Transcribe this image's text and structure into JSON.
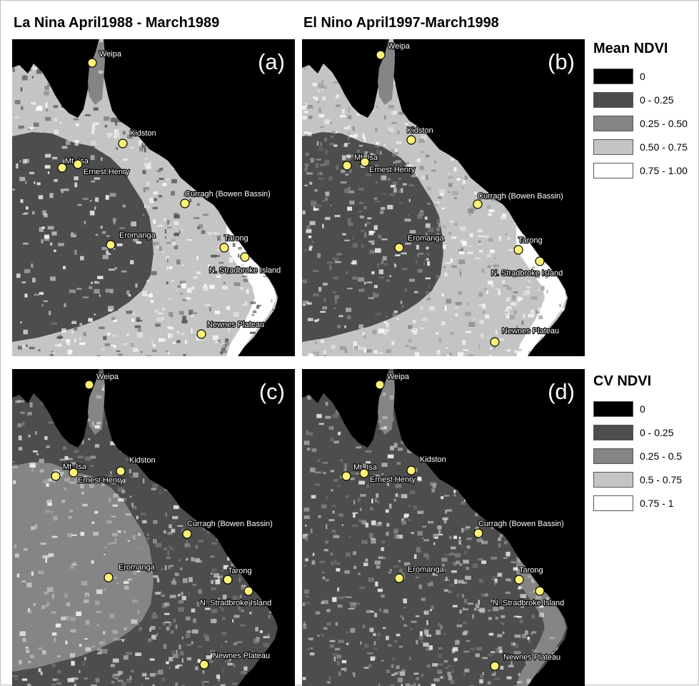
{
  "columns": [
    {
      "title": "La Nina April1988 - March1989"
    },
    {
      "title": "El Nino April1997-March1998"
    }
  ],
  "panels": [
    {
      "label": "(a)",
      "row": 0,
      "col": 0
    },
    {
      "label": "(b)",
      "row": 0,
      "col": 1
    },
    {
      "label": "(c)",
      "row": 1,
      "col": 0
    },
    {
      "label": "(d)",
      "row": 1,
      "col": 1
    }
  ],
  "sites": [
    "Weipa",
    "Kidston",
    "Mt. Isa",
    "Ernest Henry",
    "Curragh (Bowen Bassin)",
    "Eromanga",
    "Tarong",
    "N. Stradbroke Island",
    "Newnes Plateau"
  ],
  "legends": {
    "mean": {
      "title": "Mean NDVI",
      "items": [
        {
          "label": "0",
          "color": "#000000"
        },
        {
          "label": "0 - 0.25",
          "color": "#4d4d4d"
        },
        {
          "label": "0.25 - 0.50",
          "color": "#858585"
        },
        {
          "label": "0.50 - 0.75",
          "color": "#c4c4c4"
        },
        {
          "label": "0.75 - 1.00",
          "color": "#ffffff"
        }
      ]
    },
    "cv": {
      "title": "CV NDVI",
      "items": [
        {
          "label": "0",
          "color": "#000000"
        },
        {
          "label": "0 - 0.25",
          "color": "#4d4d4d"
        },
        {
          "label": "0.25 - 0.5",
          "color": "#858585"
        },
        {
          "label": "0.5 - 0.75",
          "color": "#c4c4c4"
        },
        {
          "label": "0.75 - 1",
          "color": "#ffffff"
        }
      ]
    }
  },
  "colors": {
    "ocean": "#000000",
    "marker_fill": "#fff276",
    "marker_stroke": "#000000"
  }
}
